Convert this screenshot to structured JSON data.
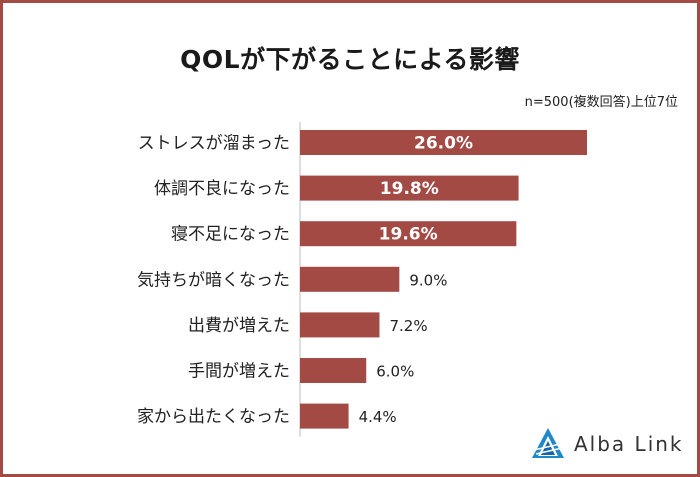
{
  "title": "QOLが下がることによる影響",
  "note": "n=500(複数回答)上位7位",
  "brand": "Alba Link",
  "colors": {
    "bar": "#a44a45",
    "border": "#a44a45",
    "label_inside": "#ffffff",
    "label_outside": "#222222"
  },
  "chart_data": {
    "type": "bar",
    "orientation": "horizontal",
    "categories": [
      "ストレスが溜まった",
      "体調不良になった",
      "寝不足になった",
      "気持ちが暗くなった",
      "出費が増えた",
      "手間が増えた",
      "家から出たくなった"
    ],
    "values": [
      26.0,
      19.8,
      19.6,
      9.0,
      7.2,
      6.0,
      4.4
    ],
    "data_labels": [
      "26.0%",
      "19.8%",
      "19.6%",
      "9.0%",
      "7.2%",
      "6.0%",
      "4.4%"
    ],
    "unit": "%",
    "xlim": [
      0,
      26.0
    ],
    "grid": false
  }
}
